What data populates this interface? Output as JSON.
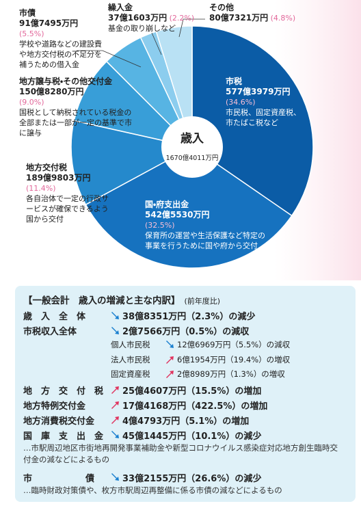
{
  "chart_data": {
    "type": "pie",
    "title": "歳入",
    "total": "1670億4011万円",
    "categories": [
      "市税",
      "国・府支出金",
      "地方交付税",
      "地方譲与税・その他交付金",
      "市債",
      "繰入金",
      "その他"
    ],
    "amounts": [
      "577億3979万円",
      "542億5530万円",
      "189億9803万円",
      "150億8280万円",
      "91億7495万円",
      "37億1603万円",
      "80億7321万円"
    ],
    "values": [
      34.6,
      32.5,
      11.4,
      9.0,
      5.5,
      2.2,
      4.8
    ],
    "value_labels": [
      "(34.6%)",
      "(32.5%)",
      "(11.4%)",
      "(9.0%)",
      "(5.5%)",
      "(2.2%)",
      "(4.8%)"
    ],
    "descriptions": [
      [
        "市民税、固定資産税、",
        "市たばこ税など"
      ],
      [
        "保育所の運営や生活保護など特定の",
        "事業を行うために国や府から交付"
      ],
      [
        "各自治体で一定の行政サ",
        "ービスが確保できるよう",
        "国から交付"
      ],
      [
        "国税として納税されている税金の",
        "全部または一部が一定の基準で市",
        "に譲与"
      ],
      [
        "学校や道路などの建設費",
        "や地方交付税の不足分を",
        "補うための借入金"
      ],
      [
        "基金の取り崩しなど"
      ],
      []
    ],
    "colors": [
      "#0b5ca6",
      "#1672bf",
      "#2589cc",
      "#389ed8",
      "#57b4e3",
      "#8ccdee",
      "#b9e1f4"
    ]
  },
  "breakdown": {
    "title": "【一般会計　歳入の増減と主な内訳】",
    "subtitle": "(前年度比)",
    "rows": [
      {
        "label": "歳　入　全　体",
        "trend": "down",
        "text": "38億8351万円（2.3%）の減少"
      },
      {
        "label": "市税収入全体",
        "trend": "down",
        "text": "2億7566万円（0.5%）の減収"
      },
      {
        "label": "個人市民税",
        "trend": "down",
        "text": "12億6969万円（5.5%）の減収",
        "sub": true
      },
      {
        "label": "法人市民税",
        "trend": "up",
        "text": "6億1954万円（19.4%）の増収",
        "sub": true
      },
      {
        "label": "固定資産税",
        "trend": "up",
        "text": "2億8989万円（1.3%）の増収",
        "sub": true
      },
      {
        "label": "地　方　交　付　税",
        "trend": "up",
        "text": "25億4607万円（15.5%）の増加"
      },
      {
        "label": "地方特例交付金",
        "trend": "up",
        "text": "17億4168万円（422.5%）の増加"
      },
      {
        "label": "地方消費税交付金",
        "trend": "up",
        "text": "4億4793万円（5.1%）の増加"
      },
      {
        "label": "国　庫　支　出　金",
        "trend": "down",
        "text": "45億1445万円（10.1%）の減少",
        "note": "…市駅周辺地区市街地再開発事業補助金や新型コロナウイルス感染症対応地方創生臨時交付金の減などによるもの"
      },
      {
        "label": "市　　　　　　債",
        "trend": "down",
        "text": "33億2155万円（26.6%）の減少",
        "note": "…臨時財政対策債や、枚方市駅周辺再整備に係る市債の減などによるもの"
      }
    ]
  }
}
